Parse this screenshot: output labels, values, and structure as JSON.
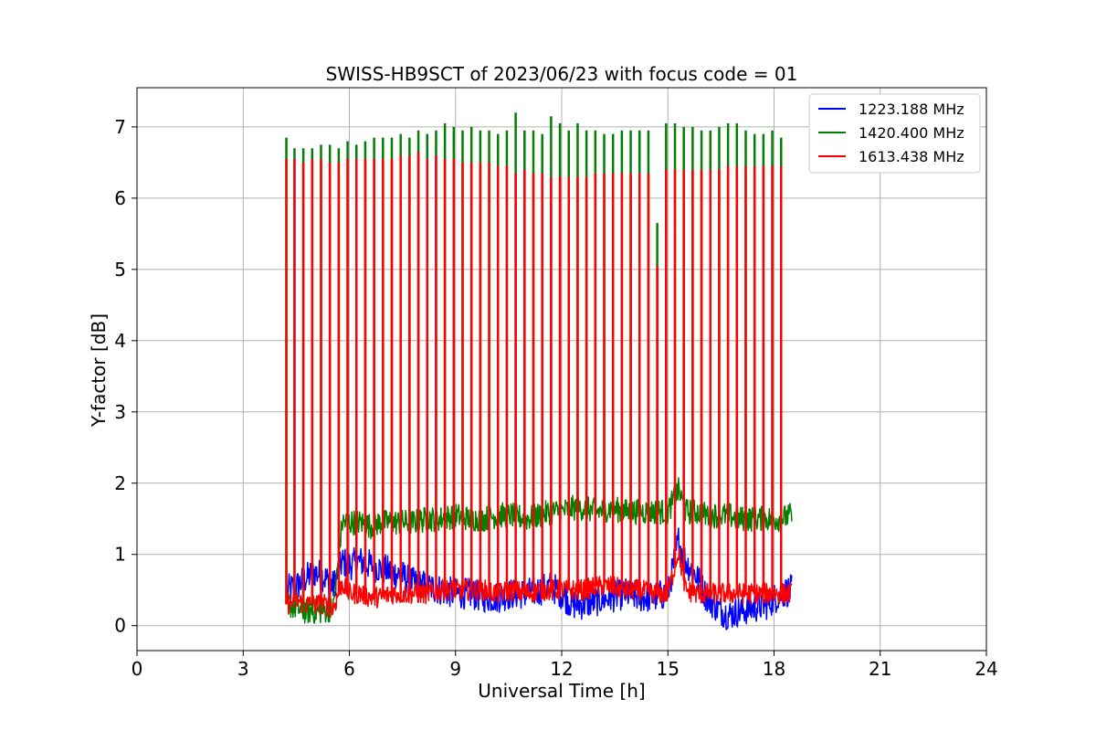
{
  "chart_data": {
    "type": "line",
    "title": "SWISS-HB9SCT of 2023/06/23 with focus code = 01",
    "xlabel": "Universal Time [h]",
    "ylabel": "Y-factor [dB]",
    "xlim": [
      0,
      24
    ],
    "ylim": [
      -0.35,
      7.55
    ],
    "xticks": [
      0,
      3,
      6,
      9,
      12,
      15,
      18,
      21,
      24
    ],
    "yticks": [
      0,
      1,
      2,
      3,
      4,
      5,
      6,
      7
    ],
    "grid": true,
    "legend_position": "top-right",
    "series": [
      {
        "name": "1223.188 MHz",
        "color": "#0000ff",
        "x": [
          4.25,
          4.5,
          4.75,
          5.0,
          5.25,
          5.55,
          5.8,
          6.0,
          6.3,
          6.6,
          6.9,
          7.2,
          7.5,
          7.8,
          8.2,
          8.6,
          9.0,
          9.4,
          9.8,
          10.2,
          10.6,
          11.0,
          11.4,
          11.7,
          12.0,
          12.3,
          12.6,
          13.0,
          13.4,
          13.8,
          14.2,
          14.6,
          15.0,
          15.3,
          15.5,
          15.8,
          16.1,
          16.4,
          16.7,
          17.0,
          17.4,
          17.8,
          18.2,
          18.5
        ],
        "y": [
          0.5,
          0.55,
          0.65,
          0.75,
          0.7,
          0.55,
          0.9,
          0.85,
          0.9,
          0.85,
          0.8,
          0.75,
          0.7,
          0.6,
          0.55,
          0.5,
          0.45,
          0.45,
          0.4,
          0.4,
          0.45,
          0.45,
          0.5,
          0.55,
          0.45,
          0.3,
          0.3,
          0.35,
          0.4,
          0.45,
          0.4,
          0.4,
          0.45,
          1.2,
          0.9,
          0.7,
          0.4,
          0.25,
          0.15,
          0.2,
          0.25,
          0.3,
          0.45,
          0.5
        ]
      },
      {
        "name": "1420.400 MHz",
        "color": "#008000",
        "x": [
          4.25,
          4.5,
          4.75,
          5.0,
          5.25,
          5.55,
          5.8,
          6.0,
          6.3,
          6.6,
          6.9,
          7.2,
          7.5,
          7.8,
          8.2,
          8.6,
          9.0,
          9.4,
          9.8,
          10.2,
          10.6,
          11.0,
          11.4,
          11.7,
          12.0,
          12.3,
          12.6,
          13.0,
          13.4,
          13.8,
          14.2,
          14.6,
          15.0,
          15.3,
          15.5,
          15.8,
          16.1,
          16.4,
          16.7,
          17.0,
          17.4,
          17.8,
          18.2,
          18.5
        ],
        "y": [
          0.3,
          0.25,
          0.2,
          0.2,
          0.2,
          0.25,
          1.45,
          1.45,
          1.45,
          1.4,
          1.45,
          1.45,
          1.45,
          1.45,
          1.5,
          1.5,
          1.55,
          1.5,
          1.5,
          1.55,
          1.55,
          1.5,
          1.55,
          1.6,
          1.6,
          1.65,
          1.65,
          1.6,
          1.65,
          1.6,
          1.6,
          1.6,
          1.6,
          1.9,
          1.6,
          1.6,
          1.55,
          1.55,
          1.55,
          1.5,
          1.5,
          1.5,
          1.5,
          1.55
        ]
      },
      {
        "name": "1613.438 MHz",
        "color": "#ff0000",
        "x": [
          4.25,
          4.5,
          4.75,
          5.0,
          5.25,
          5.55,
          5.8,
          6.0,
          6.3,
          6.6,
          6.9,
          7.2,
          7.5,
          7.8,
          8.2,
          8.6,
          9.0,
          9.4,
          9.8,
          10.2,
          10.6,
          11.0,
          11.4,
          11.7,
          12.0,
          12.3,
          12.6,
          13.0,
          13.4,
          13.8,
          14.2,
          14.6,
          15.0,
          15.3,
          15.5,
          15.8,
          16.1,
          16.4,
          16.7,
          17.0,
          17.4,
          17.8,
          18.2,
          18.5
        ],
        "y": [
          0.3,
          0.35,
          0.3,
          0.3,
          0.3,
          0.25,
          0.6,
          0.45,
          0.45,
          0.4,
          0.4,
          0.45,
          0.45,
          0.45,
          0.45,
          0.5,
          0.5,
          0.5,
          0.5,
          0.45,
          0.5,
          0.45,
          0.5,
          0.5,
          0.5,
          0.5,
          0.5,
          0.55,
          0.55,
          0.5,
          0.5,
          0.45,
          0.45,
          1.05,
          0.5,
          0.45,
          0.45,
          0.45,
          0.45,
          0.45,
          0.45,
          0.45,
          0.45,
          0.45
        ]
      }
    ],
    "spikes": {
      "description": "",
      "times": [
        4.22,
        4.45,
        4.7,
        4.95,
        5.2,
        5.45,
        5.7,
        5.95,
        6.2,
        6.45,
        6.7,
        6.95,
        7.2,
        7.45,
        7.7,
        7.95,
        8.2,
        8.45,
        8.7,
        8.95,
        9.2,
        9.45,
        9.7,
        9.95,
        10.2,
        10.45,
        10.7,
        10.95,
        11.2,
        11.45,
        11.7,
        11.95,
        12.2,
        12.45,
        12.7,
        12.95,
        13.2,
        13.45,
        13.7,
        13.95,
        14.2,
        14.45,
        14.7,
        14.95,
        15.2,
        15.45,
        15.7,
        15.95,
        16.2,
        16.45,
        16.7,
        16.95,
        17.2,
        17.45,
        17.7,
        17.95,
        18.2
      ],
      "green_peaks": [
        6.85,
        6.7,
        6.7,
        6.7,
        6.75,
        6.75,
        6.7,
        6.8,
        6.75,
        6.8,
        6.85,
        6.85,
        6.85,
        6.9,
        6.85,
        6.95,
        6.9,
        6.95,
        7.05,
        7.0,
        6.95,
        7.0,
        6.95,
        6.95,
        6.9,
        6.95,
        7.2,
        6.95,
        6.95,
        6.9,
        7.15,
        7.05,
        6.95,
        7.05,
        6.95,
        6.95,
        6.9,
        6.9,
        6.95,
        6.95,
        6.95,
        6.95,
        5.65,
        7.05,
        7.05,
        7.0,
        7.0,
        6.95,
        6.95,
        7.0,
        7.05,
        7.05,
        6.95,
        6.9,
        6.9,
        6.95,
        6.85
      ],
      "red_peaks": [
        6.55,
        6.55,
        6.5,
        6.55,
        6.55,
        6.5,
        6.5,
        6.55,
        6.55,
        6.55,
        6.55,
        6.55,
        6.55,
        6.6,
        6.6,
        6.65,
        6.55,
        6.6,
        6.55,
        6.55,
        6.5,
        6.5,
        6.5,
        6.5,
        6.45,
        6.45,
        6.35,
        6.4,
        6.35,
        6.35,
        6.3,
        6.3,
        6.3,
        6.3,
        6.3,
        6.35,
        6.35,
        6.35,
        6.35,
        6.35,
        6.35,
        6.35,
        5.05,
        6.4,
        6.4,
        6.4,
        6.4,
        6.4,
        6.4,
        6.4,
        6.45,
        6.45,
        6.45,
        6.45,
        6.45,
        6.45,
        6.45
      ]
    }
  }
}
